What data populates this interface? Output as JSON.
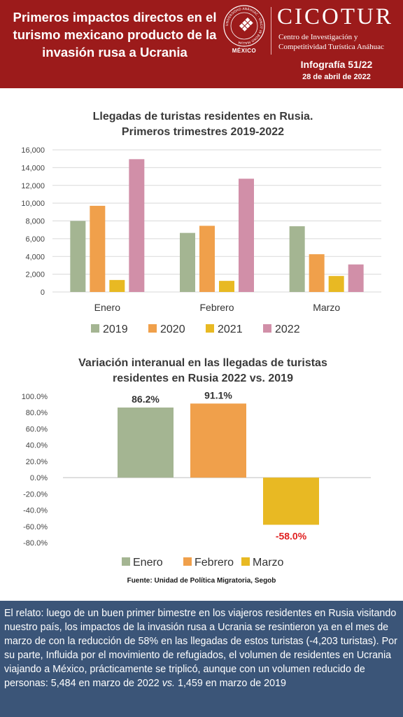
{
  "header": {
    "title": "Primeros impactos directos en el turismo mexicano producto de la invasión rusa a Ucrania",
    "seal_text": "UNIVERSIDAD ANÁHUAC · VINCIT IN BONO MALUM",
    "seal_label": "MÉXICO",
    "brand": "CICOTUR",
    "brand_line1": "Centro de Investigación y",
    "brand_line2": "Competitividad Turística Anáhuac",
    "infographic": "Infografía 51/22",
    "date": "28 de abril de 2022",
    "bg_color": "#9c1b1b"
  },
  "chart1": {
    "title_line1": "Llegadas de turistas residentes en Rusia.",
    "title_line2": "Primeros trimestres 2019-2022"
  },
  "chart2": {
    "title_line1": "Variación interanual en las llegadas de turistas",
    "title_line2": "residentes en Rusia 2022 vs. 2019"
  },
  "chart_data": [
    {
      "type": "bar",
      "title": "Llegadas de turistas residentes en Rusia. Primeros trimestres 2019-2022",
      "categories": [
        "Enero",
        "Febrero",
        "Marzo"
      ],
      "series": [
        {
          "name": "2019",
          "color": "#a4b592",
          "values": [
            8000,
            6650,
            7400
          ]
        },
        {
          "name": "2020",
          "color": "#f0a04b",
          "values": [
            9700,
            7450,
            4250
          ]
        },
        {
          "name": "2021",
          "color": "#e8b923",
          "values": [
            1350,
            1250,
            1800
          ]
        },
        {
          "name": "2022",
          "color": "#d18fa8",
          "values": [
            14950,
            12750,
            3100
          ]
        }
      ],
      "yticks": [
        "0",
        "2,000",
        "4,000",
        "6,000",
        "8,000",
        "10,000",
        "12,000",
        "14,000",
        "16,000"
      ],
      "ylim": [
        0,
        16000
      ],
      "grid": true,
      "legend": "bottom"
    },
    {
      "type": "bar",
      "title": "Variación interanual en las llegadas de turistas residentes en Rusia 2022 vs. 2019",
      "categories": [
        "Enero",
        "Febrero",
        "Marzo"
      ],
      "values": [
        86.2,
        91.1,
        -58.0
      ],
      "labels": [
        "86.2%",
        "91.1%",
        "-58.0%"
      ],
      "colors": [
        "#a4b592",
        "#f0a04b",
        "#e8b923"
      ],
      "label_colors": [
        "#333333",
        "#333333",
        "#e02020"
      ],
      "yticks": [
        "-80.0%",
        "-60.0%",
        "-40.0%",
        "-20.0%",
        "0.0%",
        "20.0%",
        "40.0%",
        "60.0%",
        "80.0%",
        "100.0%"
      ],
      "ylim": [
        -80,
        100
      ],
      "legend": "bottom"
    }
  ],
  "source": "Fuente: Unidad de Política Migratoria, Segob",
  "footer": {
    "text_a": "El relato: luego de un buen primer bimestre en los viajeros residentes en Rusia visitando nuestro país, los impactos de la invasión rusa a Ucrania se resintieron ya en el mes de marzo de con la reducción de 58% en las llegadas de estos turistas (-4,203 turistas). Por su parte, Influida por el movimiento de refugiados, el volumen de residentes en Ucrania viajando a México, prácticamente se triplicó, aunque con un volumen reducido de personas: 5,484 en marzo de 2022 ",
    "text_vs": "vs.",
    "text_b": "  1,459 en marzo de 2019",
    "bg_color": "#3b5578"
  }
}
